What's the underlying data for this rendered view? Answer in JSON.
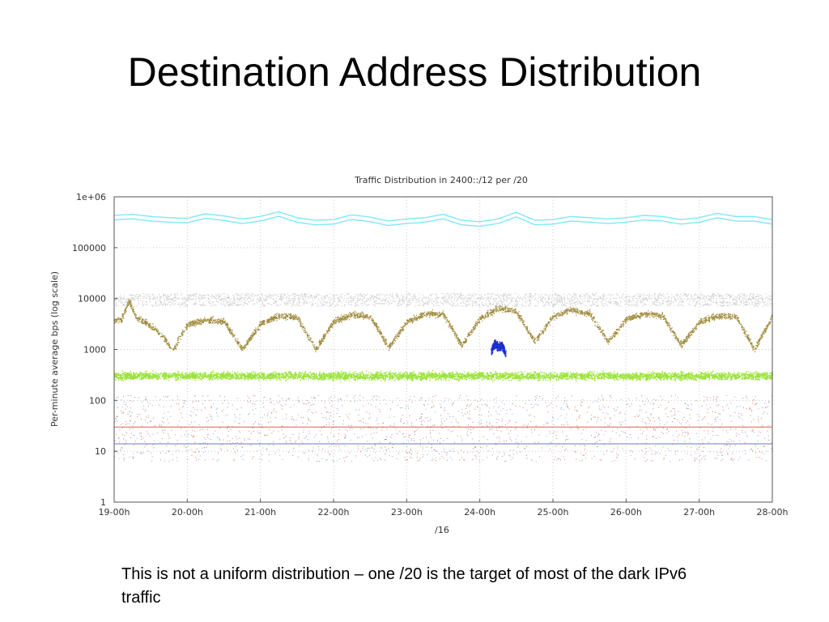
{
  "slide": {
    "title": "Destination Address Distribution",
    "caption": "This is not a uniform distribution – one /20 is the target of most of the dark IPv6 traffic"
  },
  "chart_data": {
    "type": "scatter",
    "title": "Traffic Distribution in 2400::/12 per /20",
    "xlabel": "/16",
    "ylabel": "Per-minute average bps (log scale)",
    "y_scale": "log",
    "ylim": [
      1,
      1000000
    ],
    "y_ticks": [
      1,
      10,
      100,
      1000,
      10000,
      100000,
      1000000
    ],
    "y_tick_labels": [
      "1",
      "10",
      "100",
      "1000",
      "10000",
      "100000",
      "1e+06"
    ],
    "x_tick_labels": [
      "19-00h",
      "20-00h",
      "21-00h",
      "22-00h",
      "23-00h",
      "24-00h",
      "25-00h",
      "26-00h",
      "27-00h",
      "28-00h"
    ],
    "grid": true,
    "colors": {
      "top_band": "#7fe8f5",
      "cyclic_band": "#a08a3a",
      "green_band": "#9be33a",
      "gray_cloud": "#cfcfcf",
      "burst": "#1a2ecc",
      "low_red": "#c04020",
      "low_blue": "#4060b0",
      "frame": "#444444"
    },
    "series": [
      {
        "x": [
          0,
          0.25,
          0.5,
          0.75,
          1,
          1.25,
          1.5,
          1.75,
          2,
          2.25,
          2.5,
          2.75,
          3,
          3.25,
          3.5,
          3.75,
          4,
          4.25,
          4.5,
          4.75,
          5,
          5.25,
          5.5,
          5.75,
          6,
          6.25,
          6.5,
          6.75,
          7,
          7.25,
          7.5,
          7.75,
          8,
          8.25,
          8.5,
          8.75,
          9
        ],
        "y": [
          400000,
          420000,
          380000,
          360000,
          350000,
          430000,
          390000,
          340000,
          380000,
          470000,
          360000,
          320000,
          330000,
          410000,
          370000,
          310000,
          340000,
          360000,
          420000,
          320000,
          300000,
          340000,
          460000,
          320000,
          330000,
          380000,
          360000,
          340000,
          360000,
          400000,
          380000,
          330000,
          360000,
          440000,
          380000,
          380000,
          330000
        ]
      },
      {
        "x": [
          0,
          0.1,
          0.2,
          0.3,
          0.4,
          0.5,
          0.6,
          0.7,
          0.8,
          0.9,
          1,
          1.25,
          1.5,
          1.75,
          2,
          2.25,
          2.5,
          2.75,
          3,
          3.25,
          3.5,
          3.75,
          4,
          4.25,
          4.5,
          4.75,
          5,
          5.25,
          5.5,
          5.75,
          6,
          6.25,
          6.5,
          6.75,
          7,
          7.25,
          7.5,
          7.75,
          8,
          8.25,
          8.5,
          8.75,
          9
        ],
        "y": [
          3500,
          4000,
          9000,
          4200,
          3500,
          2800,
          2200,
          1500,
          900,
          1800,
          3000,
          3800,
          3500,
          1000,
          3200,
          4500,
          4200,
          1000,
          3500,
          4800,
          4500,
          1100,
          3500,
          5000,
          4800,
          1200,
          4000,
          6500,
          5500,
          1400,
          4500,
          6000,
          5000,
          1400,
          4000,
          5000,
          4500,
          1200,
          3500,
          4500,
          4500,
          1000,
          4500
        ]
      },
      {
        "x": [
          0,
          1,
          2,
          3,
          4,
          5,
          6,
          7,
          8,
          9
        ],
        "y": [
          300,
          300,
          300,
          300,
          300,
          300,
          300,
          300,
          300,
          300
        ]
      },
      {
        "x": [
          5.15,
          5.2,
          5.25,
          5.3,
          5.35
        ],
        "y": [
          900,
          1300,
          1100,
          1200,
          800
        ]
      },
      {
        "x": [
          0,
          9
        ],
        "y": [
          14,
          14
        ]
      },
      {
        "x": [
          0,
          9
        ],
        "y": [
          30,
          30
        ]
      }
    ]
  }
}
